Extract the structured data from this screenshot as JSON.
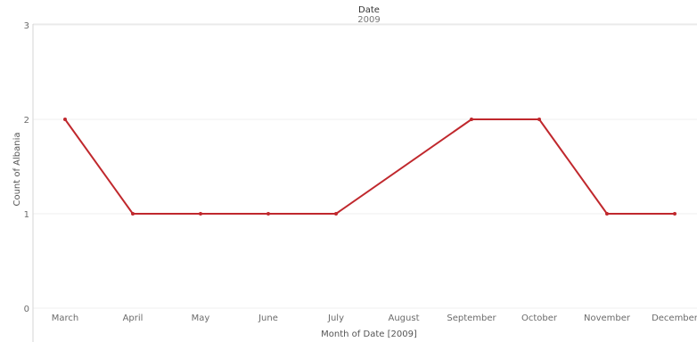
{
  "chart_data": {
    "type": "line",
    "column_header": "Date",
    "column_subheader": "2009",
    "xlabel": "Month of Date [2009]",
    "ylabel": "Count of Albania",
    "categories": [
      "March",
      "April",
      "May",
      "June",
      "July",
      "August",
      "September",
      "October",
      "November",
      "December"
    ],
    "series": [
      {
        "values": [
          2,
          1,
          1,
          1,
          1,
          null,
          2,
          2,
          1,
          1
        ]
      }
    ],
    "ylim": [
      0,
      3
    ],
    "yticks": [
      "0",
      "1",
      "2",
      "3"
    ],
    "grid": true,
    "line_color": "#c0282d"
  }
}
